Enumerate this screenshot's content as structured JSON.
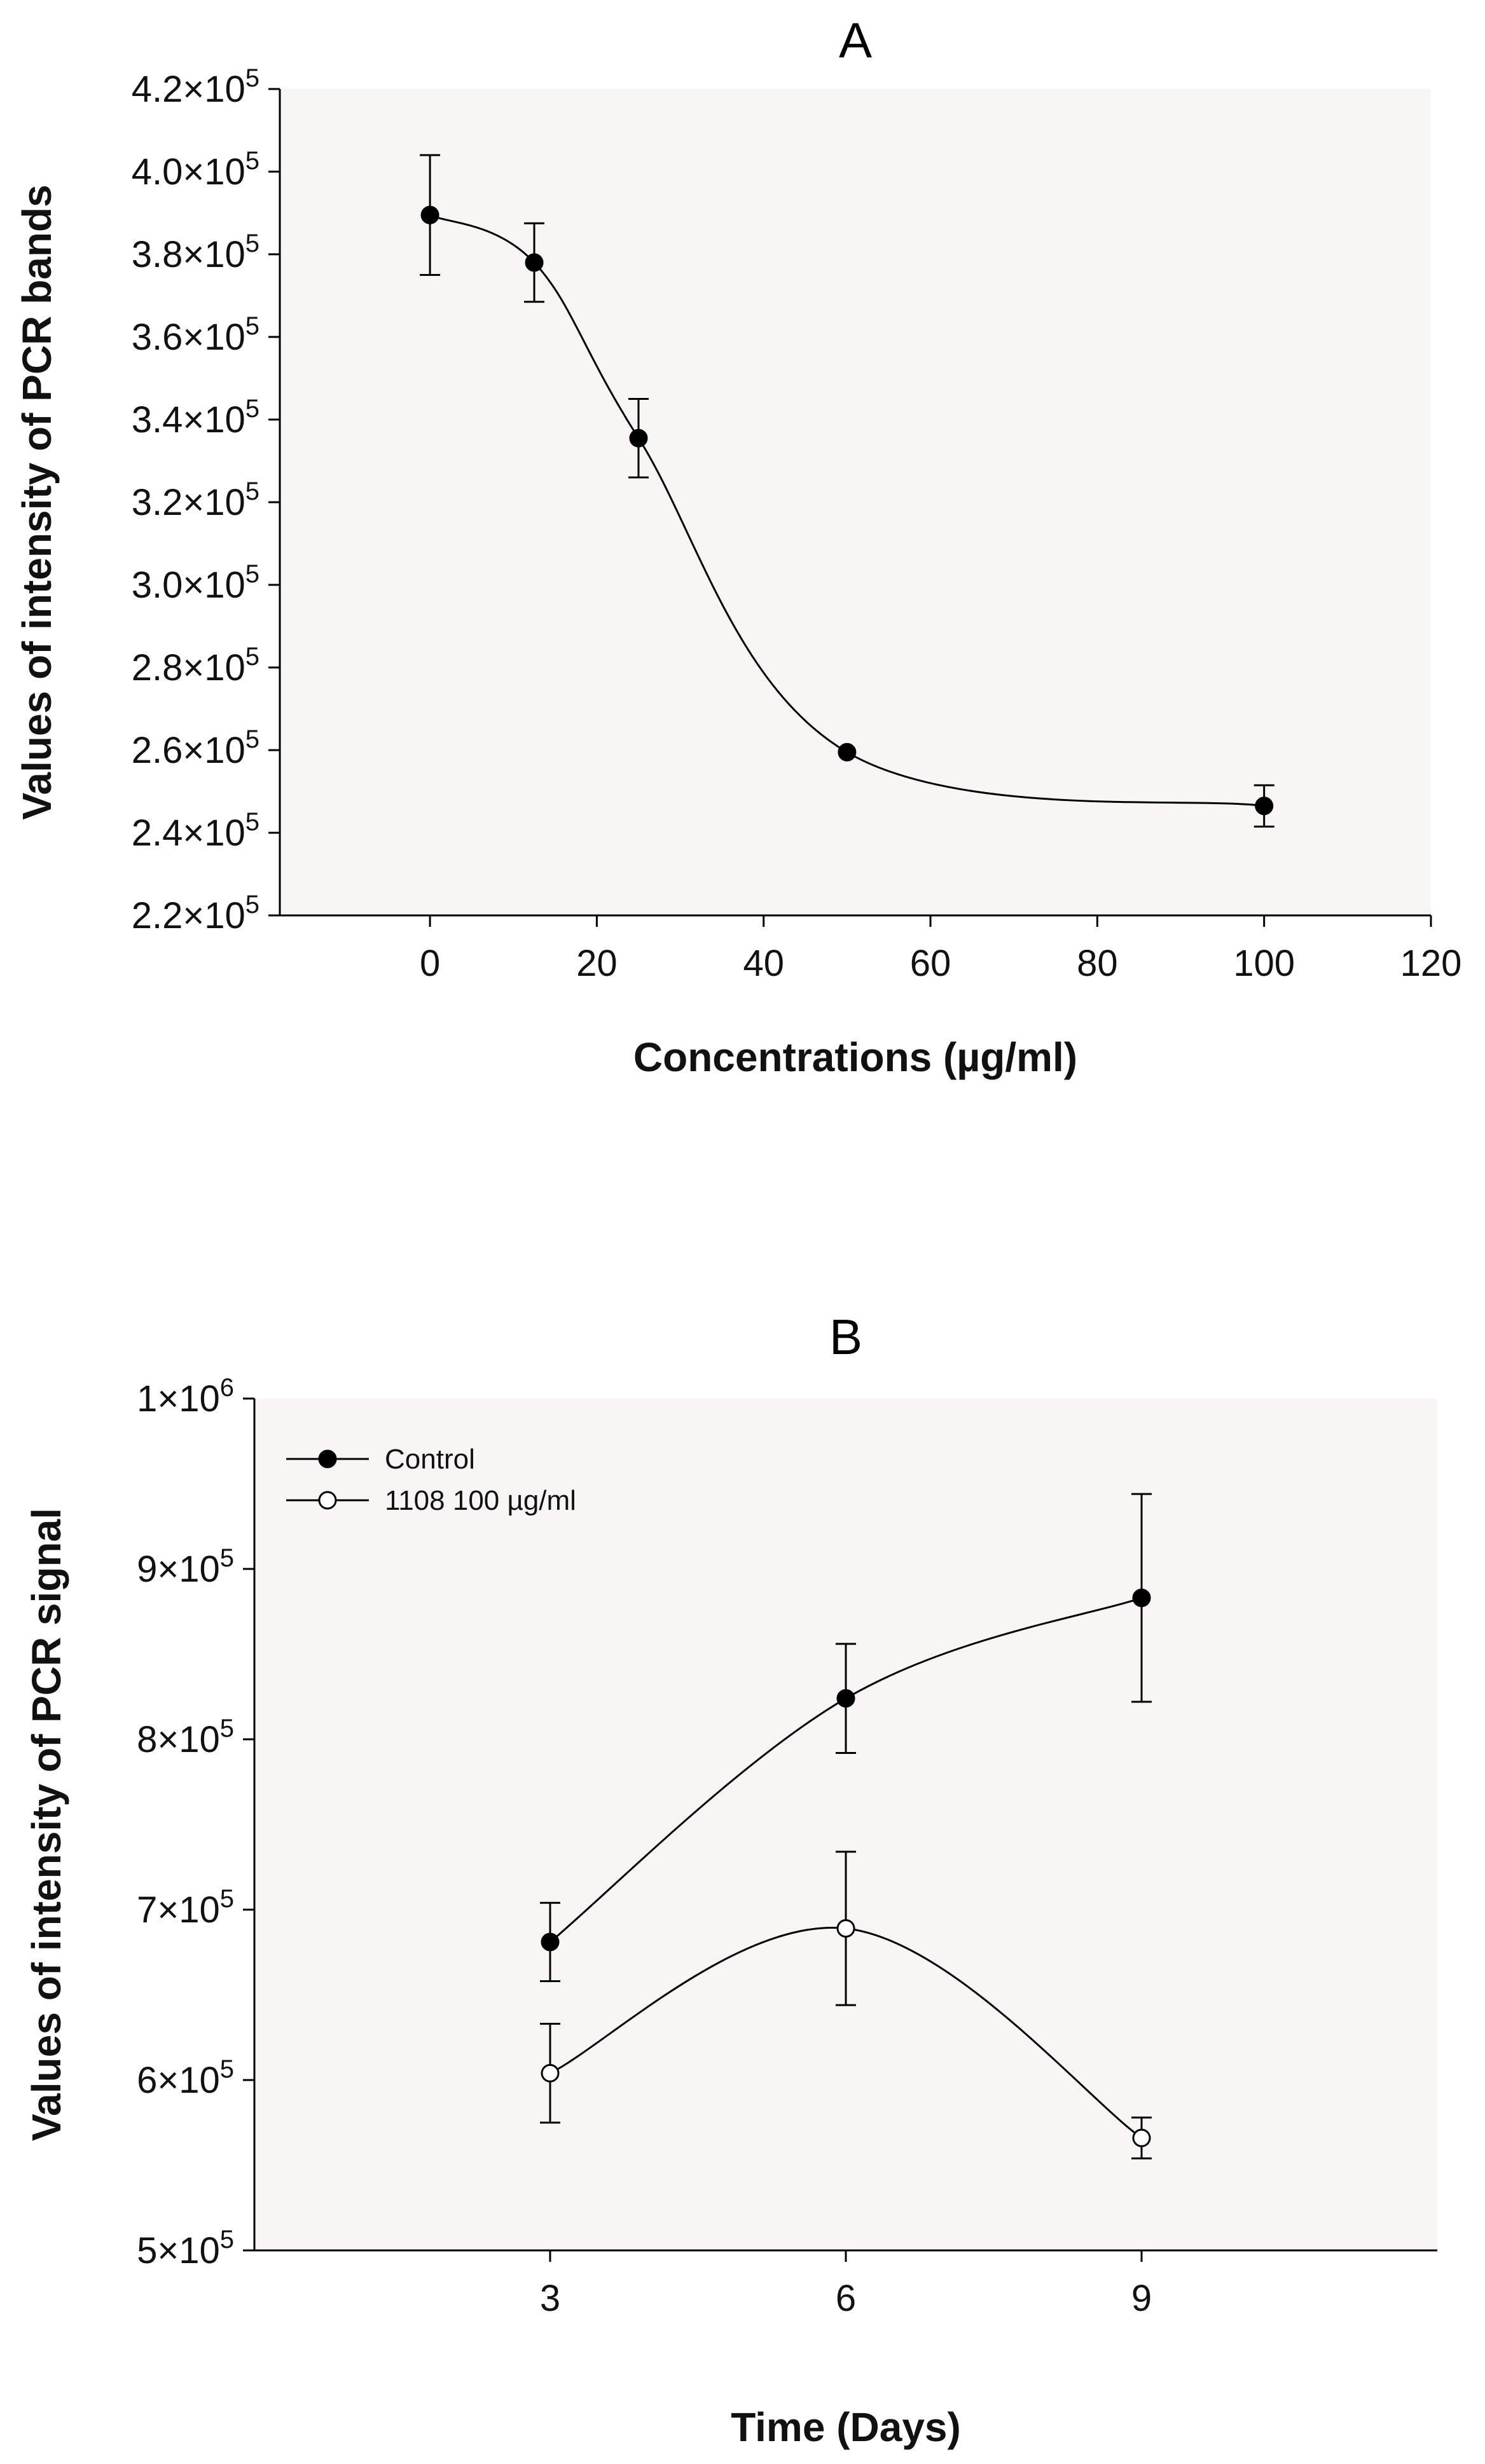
{
  "chart_data": [
    {
      "id": "A",
      "type": "line",
      "title": "A",
      "xlabel": "Concentrations (µg/ml)",
      "ylabel": "Values of intensity of PCR bands",
      "xlim": [
        -18,
        120
      ],
      "ylim": [
        220000,
        420000
      ],
      "x_ticks": [
        0,
        20,
        40,
        60,
        80,
        100,
        120
      ],
      "x_tick_labels": [
        "0",
        "20",
        "40",
        "60",
        "80",
        "100",
        "120"
      ],
      "y_ticks": [
        220000,
        240000,
        260000,
        280000,
        300000,
        320000,
        340000,
        360000,
        380000,
        400000,
        420000
      ],
      "y_tick_labels": [
        {
          "mantissa": "2.2×10",
          "exp": "5"
        },
        {
          "mantissa": "2.4×10",
          "exp": "5"
        },
        {
          "mantissa": "2.6×10",
          "exp": "5"
        },
        {
          "mantissa": "2.8×10",
          "exp": "5"
        },
        {
          "mantissa": "3.0×10",
          "exp": "5"
        },
        {
          "mantissa": "3.2×10",
          "exp": "5"
        },
        {
          "mantissa": "3.4×10",
          "exp": "5"
        },
        {
          "mantissa": "3.6×10",
          "exp": "5"
        },
        {
          "mantissa": "3.8×10",
          "exp": "5"
        },
        {
          "mantissa": "4.0×10",
          "exp": "5"
        },
        {
          "mantissa": "4.2×10",
          "exp": "5"
        }
      ],
      "grid": false,
      "background": "#f8f5f5",
      "series": [
        {
          "marker": "filled",
          "curve": "smooth",
          "color": "#000000",
          "points": [
            {
              "x": 0,
              "y": 389500,
              "err": 14500
            },
            {
              "x": 12.5,
              "y": 378000,
              "err": 9500
            },
            {
              "x": 25,
              "y": 335500,
              "err": 9500
            },
            {
              "x": 50,
              "y": 259500,
              "err": 0
            },
            {
              "x": 100,
              "y": 246500,
              "err": 5000
            }
          ]
        }
      ]
    },
    {
      "id": "B",
      "type": "line",
      "title": "B",
      "xlabel": "Time (Days)",
      "ylabel": "Values of intensity of PCR signal",
      "xlim": [
        0,
        12
      ],
      "ylim": [
        500000,
        1000000
      ],
      "x_ticks": [
        3,
        6,
        9
      ],
      "x_tick_labels": [
        "3",
        "6",
        "9"
      ],
      "y_ticks": [
        500000,
        600000,
        700000,
        800000,
        900000,
        1000000
      ],
      "y_tick_labels": [
        {
          "mantissa": "5×10",
          "exp": "5"
        },
        {
          "mantissa": "6×10",
          "exp": "5"
        },
        {
          "mantissa": "7×10",
          "exp": "5"
        },
        {
          "mantissa": "8×10",
          "exp": "5"
        },
        {
          "mantissa": "9×10",
          "exp": "5"
        },
        {
          "mantissa": "1×10",
          "exp": "6"
        }
      ],
      "grid": false,
      "background": "#f8f5f5",
      "legend_position": "top-left",
      "series": [
        {
          "name": "Control",
          "marker": "filled",
          "curve": "smooth",
          "color": "#000000",
          "points": [
            {
              "x": 3,
              "y": 681000,
              "err": 23000
            },
            {
              "x": 6,
              "y": 824000,
              "err": 32000
            },
            {
              "x": 9,
              "y": 883000,
              "err": 61000
            }
          ]
        },
        {
          "name": "1108 100 µg/ml",
          "marker": "open",
          "curve": "smooth",
          "color": "#000000",
          "points": [
            {
              "x": 3,
              "y": 604000,
              "err": 29000
            },
            {
              "x": 6,
              "y": 689000,
              "err": 45000
            },
            {
              "x": 9,
              "y": 566000,
              "err": 12000
            }
          ]
        }
      ]
    }
  ]
}
